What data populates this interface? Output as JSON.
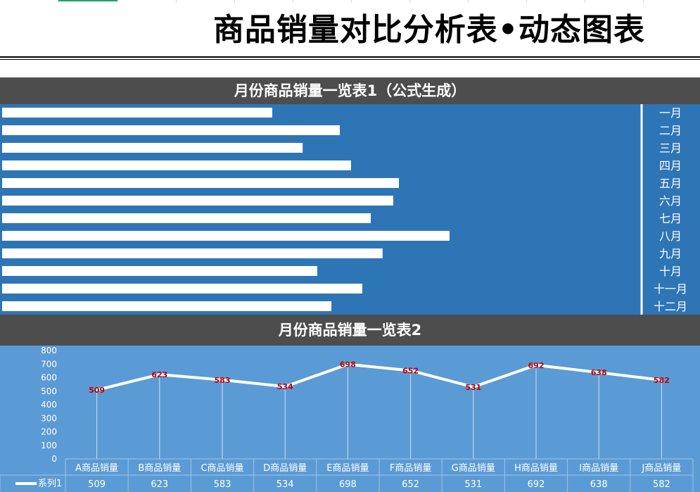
{
  "title": "商品销量对比分析表•动态图表",
  "section1": {
    "title": "月份商品销量一览表1（公式生成）"
  },
  "section2": {
    "title": "月份商品销量一览表2"
  },
  "colors": {
    "header": "#4d4d4d",
    "bar_panel": "#2e75b6",
    "line_panel": "#5b9bd5",
    "bar": "#ffffff",
    "line": "#ffffff",
    "data_label": "#c00000"
  },
  "chart_data": [
    {
      "type": "bar",
      "orientation": "horizontal",
      "categories": [
        "一月",
        "二月",
        "三月",
        "四月",
        "五月",
        "六月",
        "七月",
        "八月",
        "九月",
        "十月",
        "十一月",
        "十二月"
      ],
      "values": [
        480,
        600,
        534,
        620,
        705,
        695,
        655,
        795,
        676,
        560,
        640,
        585
      ],
      "xlim": [
        0,
        1240
      ],
      "axis_position": "right",
      "grid": false
    },
    {
      "type": "line",
      "categories": [
        "A商品销量",
        "B商品销量",
        "C商品销量",
        "D商品销量",
        "E商品销量",
        "F商品销量",
        "G商品销量",
        "H商品销量",
        "I商品销量",
        "J商品销量"
      ],
      "series": [
        {
          "name": "系列1",
          "values": [
            509,
            623,
            583,
            534,
            698,
            652,
            531,
            692,
            638,
            582
          ]
        }
      ],
      "ylim": [
        0,
        800
      ],
      "yticks": [
        0,
        100,
        200,
        300,
        400,
        500,
        600,
        700,
        800
      ],
      "data_labels": true,
      "data_table": true
    }
  ]
}
